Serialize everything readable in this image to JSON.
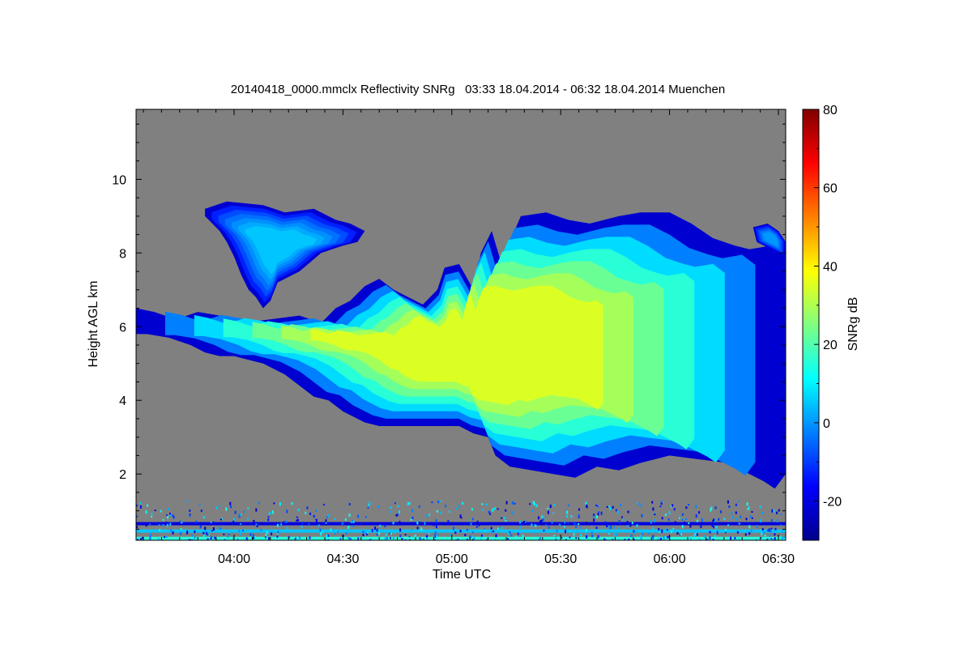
{
  "chart_data": {
    "type": "heatmap",
    "title": "20140418_0000.mmclx Reflectivity SNRg   03:33 18.04.2014 - 06:32 18.04.2014 Muenchen",
    "xlabel": "Time UTC",
    "ylabel": "Height AGL km",
    "x_range_minutes_utc": [
      213,
      392
    ],
    "y_range_km": [
      0.2,
      11.9
    ],
    "x_ticks": [
      {
        "label": "04:00",
        "value": 240
      },
      {
        "label": "04:30",
        "value": 270
      },
      {
        "label": "05:00",
        "value": 300
      },
      {
        "label": "05:30",
        "value": 330
      },
      {
        "label": "06:00",
        "value": 360
      },
      {
        "label": "06:30",
        "value": 390
      }
    ],
    "y_ticks": [
      {
        "label": "2",
        "value": 2
      },
      {
        "label": "4",
        "value": 4
      },
      {
        "label": "6",
        "value": 6
      },
      {
        "label": "8",
        "value": 8
      },
      {
        "label": "10",
        "value": 10
      }
    ],
    "colorbar": {
      "label": "SNRg dB",
      "range": [
        -30,
        80
      ],
      "ticks": [
        {
          "label": "-20",
          "value": -20
        },
        {
          "label": "0",
          "value": 0
        },
        {
          "label": "20",
          "value": 20
        },
        {
          "label": "40",
          "value": 40
        },
        {
          "label": "60",
          "value": 60
        },
        {
          "label": "80",
          "value": 80
        }
      ]
    },
    "background_color": "#808080",
    "cloud_regions": [
      {
        "name": "main-cloud",
        "core_snr_db": 35,
        "edge_snr_db": -22,
        "outline": [
          [
            213,
            6.5
          ],
          [
            218,
            6.4
          ],
          [
            224,
            6.2
          ],
          [
            230,
            6.4
          ],
          [
            236,
            6.3
          ],
          [
            242,
            6.1
          ],
          [
            250,
            6.2
          ],
          [
            258,
            6.3
          ],
          [
            264,
            6.1
          ],
          [
            268,
            6.5
          ],
          [
            272,
            6.7
          ],
          [
            276,
            7.1
          ],
          [
            280,
            7.3
          ],
          [
            284,
            7.0
          ],
          [
            288,
            6.8
          ],
          [
            292,
            6.6
          ],
          [
            296,
            7.0
          ],
          [
            298,
            7.6
          ],
          [
            302,
            7.7
          ],
          [
            306,
            7.0
          ],
          [
            308,
            8.0
          ],
          [
            311,
            8.6
          ],
          [
            314,
            7.6
          ],
          [
            316,
            8.3
          ],
          [
            319,
            9.0
          ],
          [
            326,
            9.1
          ],
          [
            332,
            8.9
          ],
          [
            338,
            8.8
          ],
          [
            346,
            9.0
          ],
          [
            352,
            9.1
          ],
          [
            360,
            9.1
          ],
          [
            366,
            8.8
          ],
          [
            372,
            8.4
          ],
          [
            378,
            8.2
          ],
          [
            382,
            8.1
          ],
          [
            388,
            8.2
          ],
          [
            392,
            7.9
          ],
          [
            392,
            2.0
          ],
          [
            389,
            1.6
          ],
          [
            386,
            1.8
          ],
          [
            382,
            2.0
          ],
          [
            376,
            2.3
          ],
          [
            368,
            2.4
          ],
          [
            360,
            2.5
          ],
          [
            352,
            2.3
          ],
          [
            346,
            2.1
          ],
          [
            340,
            2.2
          ],
          [
            334,
            1.9
          ],
          [
            328,
            2.0
          ],
          [
            322,
            2.1
          ],
          [
            316,
            2.2
          ],
          [
            312,
            2.5
          ],
          [
            310,
            3.0
          ],
          [
            306,
            3.1
          ],
          [
            302,
            3.3
          ],
          [
            296,
            3.3
          ],
          [
            290,
            3.3
          ],
          [
            284,
            3.3
          ],
          [
            280,
            3.3
          ],
          [
            276,
            3.4
          ],
          [
            270,
            3.7
          ],
          [
            266,
            4.0
          ],
          [
            262,
            4.1
          ],
          [
            258,
            4.4
          ],
          [
            254,
            4.7
          ],
          [
            248,
            5.0
          ],
          [
            244,
            5.1
          ],
          [
            240,
            5.2
          ],
          [
            236,
            5.2
          ],
          [
            232,
            5.3
          ],
          [
            228,
            5.5
          ],
          [
            222,
            5.7
          ],
          [
            216,
            5.8
          ],
          [
            213,
            5.8
          ]
        ]
      },
      {
        "name": "upper-anvil",
        "core_snr_db": 5,
        "edge_snr_db": -22,
        "outline": [
          [
            232,
            9.2
          ],
          [
            238,
            9.4
          ],
          [
            248,
            9.3
          ],
          [
            254,
            9.1
          ],
          [
            262,
            9.2
          ],
          [
            268,
            8.9
          ],
          [
            272,
            8.8
          ],
          [
            276,
            8.6
          ],
          [
            274,
            8.3
          ],
          [
            270,
            8.2
          ],
          [
            264,
            8.0
          ],
          [
            258,
            7.5
          ],
          [
            252,
            7.2
          ],
          [
            250,
            6.7
          ],
          [
            248,
            6.5
          ],
          [
            246,
            6.8
          ],
          [
            244,
            7.0
          ],
          [
            242,
            7.4
          ],
          [
            240,
            7.9
          ],
          [
            238,
            8.3
          ],
          [
            236,
            8.6
          ],
          [
            232,
            9.0
          ]
        ]
      },
      {
        "name": "upper-right-edge",
        "core_snr_db": 0,
        "edge_snr_db": -22,
        "outline": [
          [
            383,
            8.7
          ],
          [
            387,
            8.8
          ],
          [
            390,
            8.6
          ],
          [
            392,
            8.3
          ],
          [
            392,
            7.9
          ],
          [
            388,
            8.1
          ],
          [
            384,
            8.3
          ]
        ]
      }
    ],
    "ground_clutter": {
      "height_range_km": [
        0.2,
        1.3
      ],
      "bands": [
        {
          "height_km": 0.45,
          "snr_db": 5
        },
        {
          "height_km": 0.25,
          "snr_db": 15
        },
        {
          "height_km": 0.65,
          "snr_db": -20
        }
      ]
    }
  }
}
